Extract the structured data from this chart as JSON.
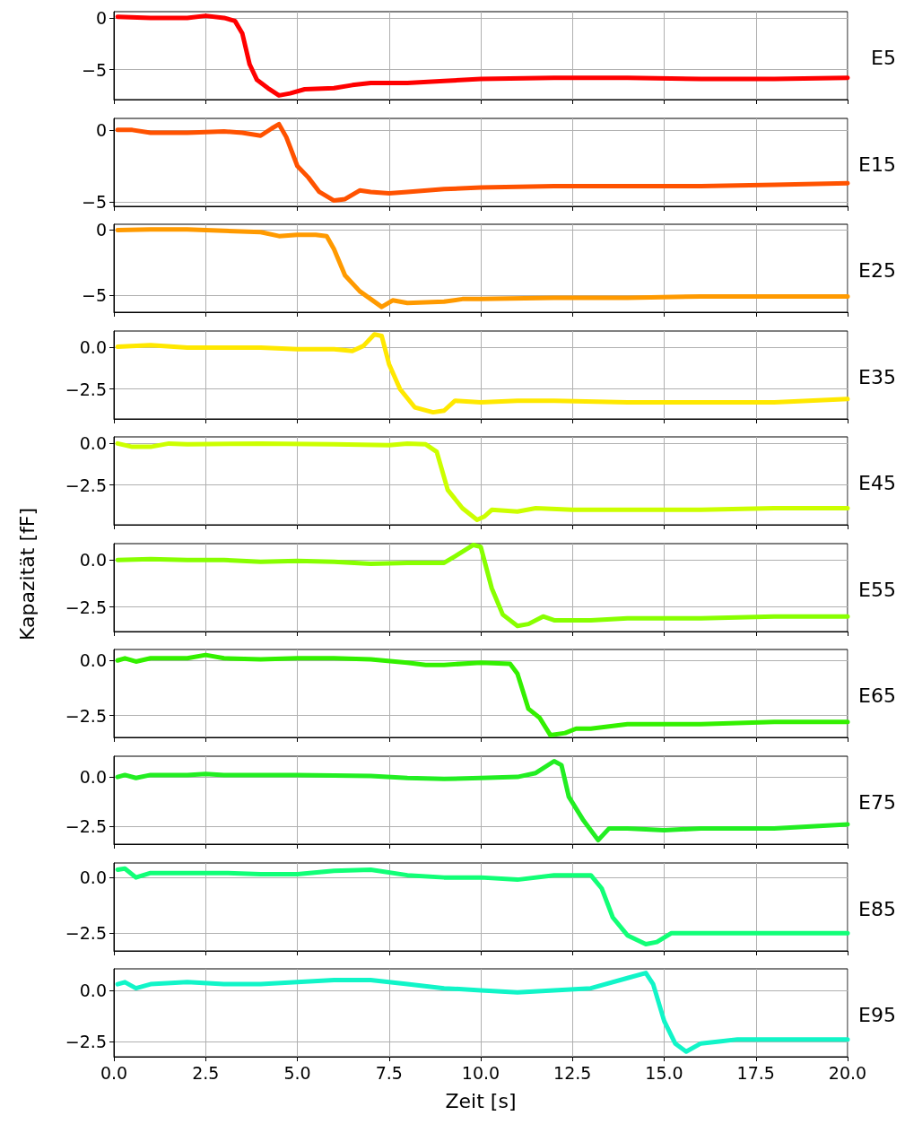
{
  "chart_data": [
    {
      "type": "line",
      "x": [
        0.1,
        1,
        2,
        2.5,
        3,
        3.3,
        3.5,
        3.7,
        3.9,
        4.2,
        4.5,
        4.8,
        5.2,
        6,
        6.5,
        7,
        8,
        9,
        10,
        12,
        14,
        16,
        18,
        20
      ],
      "series": [
        {
          "name": "E5",
          "color": "#ff0000",
          "values": [
            0.1,
            0.0,
            0.0,
            0.2,
            0.0,
            -0.3,
            -1.5,
            -4.5,
            -6.0,
            -6.8,
            -7.5,
            -7.3,
            -6.9,
            -6.8,
            -6.5,
            -6.3,
            -6.3,
            -6.1,
            -5.9,
            -5.8,
            -5.8,
            -5.9,
            -5.9,
            -5.8
          ]
        }
      ],
      "xlim": [
        0,
        20
      ],
      "xticks": [
        0,
        2.5,
        5,
        7.5,
        10,
        12.5,
        15,
        17.5,
        20
      ],
      "ylim": [
        -7.9,
        0.6
      ],
      "yticks": [
        {
          "value": 0,
          "label": "0"
        },
        {
          "value": -5,
          "label": "−5"
        }
      ],
      "grid": true,
      "legend": "right",
      "marker": "none",
      "tick_labels": "y"
    },
    {
      "type": "line",
      "x": [
        0.1,
        0.5,
        1,
        2,
        3,
        3.5,
        4,
        4.3,
        4.5,
        4.7,
        5,
        5.3,
        5.6,
        6,
        6.3,
        6.7,
        7,
        7.5,
        8,
        9,
        10,
        12,
        14,
        16,
        18,
        20
      ],
      "series": [
        {
          "name": "E15",
          "color": "#ff5200",
          "values": [
            0.0,
            0.0,
            -0.2,
            -0.2,
            -0.1,
            -0.2,
            -0.4,
            0.1,
            0.4,
            -0.5,
            -2.5,
            -3.3,
            -4.3,
            -4.9,
            -4.8,
            -4.2,
            -4.3,
            -4.4,
            -4.3,
            -4.1,
            -4.0,
            -3.9,
            -3.9,
            -3.9,
            -3.8,
            -3.7
          ]
        }
      ],
      "xlim": [
        0,
        20
      ],
      "xticks": [
        0,
        2.5,
        5,
        7.5,
        10,
        12.5,
        15,
        17.5,
        20
      ],
      "ylim": [
        -5.3,
        0.8
      ],
      "yticks": [
        {
          "value": 0,
          "label": "0"
        },
        {
          "value": -5,
          "label": "−5"
        }
      ],
      "grid": true,
      "legend": "right",
      "marker": "none",
      "tick_labels": "y"
    },
    {
      "type": "line",
      "x": [
        0.1,
        1,
        2,
        3,
        4,
        4.5,
        5,
        5.5,
        5.8,
        6,
        6.3,
        6.7,
        7,
        7.3,
        7.6,
        8,
        9,
        9.5,
        10,
        12,
        14,
        16,
        18,
        20
      ],
      "series": [
        {
          "name": "E25",
          "color": "#ff9a00",
          "values": [
            -0.05,
            0.0,
            0.0,
            -0.1,
            -0.2,
            -0.5,
            -0.4,
            -0.4,
            -0.5,
            -1.5,
            -3.5,
            -4.7,
            -5.3,
            -5.9,
            -5.4,
            -5.6,
            -5.5,
            -5.3,
            -5.3,
            -5.2,
            -5.2,
            -5.1,
            -5.1,
            -5.1
          ]
        }
      ],
      "xlim": [
        0,
        20
      ],
      "xticks": [
        0,
        2.5,
        5,
        7.5,
        10,
        12.5,
        15,
        17.5,
        20
      ],
      "ylim": [
        -6.3,
        0.4
      ],
      "yticks": [
        {
          "value": 0,
          "label": "0"
        },
        {
          "value": -5,
          "label": "−5"
        }
      ],
      "grid": true,
      "legend": "right",
      "marker": "none",
      "tick_labels": "y"
    },
    {
      "type": "line",
      "x": [
        0.1,
        1,
        2,
        3,
        4,
        5,
        6,
        6.5,
        6.8,
        7.1,
        7.3,
        7.5,
        7.8,
        8.2,
        8.7,
        9.0,
        9.3,
        10,
        11,
        12,
        14,
        16,
        18,
        20
      ],
      "series": [
        {
          "name": "E35",
          "color": "#ffe800",
          "values": [
            0.05,
            0.15,
            0.0,
            0.0,
            0.0,
            -0.1,
            -0.1,
            -0.2,
            0.1,
            0.8,
            0.7,
            -1.0,
            -2.5,
            -3.6,
            -3.9,
            -3.8,
            -3.2,
            -3.3,
            -3.2,
            -3.2,
            -3.3,
            -3.3,
            -3.3,
            -3.1
          ]
        }
      ],
      "xlim": [
        0,
        20
      ],
      "xticks": [
        0,
        2.5,
        5,
        7.5,
        10,
        12.5,
        15,
        17.5,
        20
      ],
      "ylim": [
        -4.3,
        1.0
      ],
      "yticks": [
        {
          "value": 0,
          "label": "0.0"
        },
        {
          "value": -2.5,
          "label": "−2.5"
        }
      ],
      "grid": true,
      "legend": "right",
      "marker": "none",
      "tick_labels": "y"
    },
    {
      "type": "line",
      "x": [
        0.1,
        0.5,
        1,
        1.5,
        2,
        4,
        6,
        7.5,
        8,
        8.5,
        8.8,
        9.1,
        9.5,
        9.9,
        10.1,
        10.3,
        11,
        11.5,
        12.5,
        14,
        16,
        18,
        20
      ],
      "series": [
        {
          "name": "E45",
          "color": "#ccff00",
          "values": [
            0.0,
            -0.2,
            -0.2,
            0.0,
            -0.05,
            0.0,
            -0.05,
            -0.1,
            0.0,
            -0.05,
            -0.5,
            -2.8,
            -3.9,
            -4.6,
            -4.4,
            -4.0,
            -4.1,
            -3.9,
            -4.0,
            -4.0,
            -4.0,
            -3.9,
            -3.9
          ]
        }
      ],
      "xlim": [
        0,
        20
      ],
      "xticks": [
        0,
        2.5,
        5,
        7.5,
        10,
        12.5,
        15,
        17.5,
        20
      ],
      "ylim": [
        -4.9,
        0.4
      ],
      "yticks": [
        {
          "value": 0,
          "label": "0.0"
        },
        {
          "value": -2.5,
          "label": "−2.5"
        }
      ],
      "grid": true,
      "legend": "right",
      "marker": "none",
      "tick_labels": "y"
    },
    {
      "type": "line",
      "x": [
        0.1,
        1,
        2,
        3,
        4,
        5,
        6,
        7,
        8,
        9,
        9.3,
        9.8,
        10,
        10.3,
        10.6,
        11,
        11.3,
        11.7,
        12,
        13,
        14,
        16,
        18,
        20
      ],
      "ylabel": "Kapazität [fF]",
      "series": [
        {
          "name": "E55",
          "color": "#88ff00",
          "values": [
            0.0,
            0.05,
            0.0,
            0.0,
            -0.1,
            -0.05,
            -0.1,
            -0.2,
            -0.15,
            -0.15,
            0.2,
            0.8,
            0.7,
            -1.5,
            -2.9,
            -3.5,
            -3.4,
            -3.0,
            -3.2,
            -3.2,
            -3.1,
            -3.1,
            -3.0,
            -3.0
          ]
        }
      ],
      "xlim": [
        0,
        20
      ],
      "xticks": [
        0,
        2.5,
        5,
        7.5,
        10,
        12.5,
        15,
        17.5,
        20
      ],
      "ylim": [
        -3.8,
        0.87
      ],
      "yticks": [
        {
          "value": 0,
          "label": "0.0"
        },
        {
          "value": -2.5,
          "label": "−2.5"
        }
      ],
      "grid": true,
      "legend": "right",
      "marker": "none",
      "tick_labels": "y"
    },
    {
      "type": "line",
      "x": [
        0.1,
        0.3,
        0.6,
        1,
        2,
        2.5,
        3,
        4,
        5,
        6,
        7,
        8,
        8.5,
        9,
        10,
        10.8,
        11.0,
        11.3,
        11.6,
        11.9,
        12.3,
        12.6,
        13,
        14,
        16,
        18,
        20
      ],
      "series": [
        {
          "name": "E65",
          "color": "#33f000",
          "values": [
            0.0,
            0.1,
            -0.05,
            0.1,
            0.1,
            0.25,
            0.1,
            0.05,
            0.1,
            0.1,
            0.05,
            -0.1,
            -0.2,
            -0.2,
            -0.1,
            -0.15,
            -0.6,
            -2.2,
            -2.6,
            -3.4,
            -3.3,
            -3.1,
            -3.1,
            -2.9,
            -2.9,
            -2.8,
            -2.8
          ]
        }
      ],
      "xlim": [
        0,
        20
      ],
      "xticks": [
        0,
        2.5,
        5,
        7.5,
        10,
        12.5,
        15,
        17.5,
        20
      ],
      "ylim": [
        -3.5,
        0.5
      ],
      "yticks": [
        {
          "value": 0,
          "label": "0.0"
        },
        {
          "value": -2.5,
          "label": "−2.5"
        }
      ],
      "grid": true,
      "legend": "right",
      "marker": "none",
      "tick_labels": "y"
    },
    {
      "type": "line",
      "x": [
        0.1,
        0.3,
        0.6,
        1,
        2,
        2.5,
        3,
        5,
        7,
        8,
        9,
        10,
        11,
        11.5,
        12,
        12.2,
        12.4,
        12.8,
        13.2,
        13.5,
        14,
        15,
        16,
        18,
        20
      ],
      "series": [
        {
          "name": "E75",
          "color": "#22ee22",
          "values": [
            0.0,
            0.1,
            -0.05,
            0.1,
            0.1,
            0.15,
            0.1,
            0.1,
            0.05,
            -0.05,
            -0.1,
            -0.05,
            0.0,
            0.2,
            0.8,
            0.6,
            -1.0,
            -2.2,
            -3.2,
            -2.6,
            -2.6,
            -2.7,
            -2.6,
            -2.6,
            -2.4
          ]
        }
      ],
      "xlim": [
        0,
        20
      ],
      "xticks": [
        0,
        2.5,
        5,
        7.5,
        10,
        12.5,
        15,
        17.5,
        20
      ],
      "ylim": [
        -3.4,
        1.05
      ],
      "yticks": [
        {
          "value": 0,
          "label": "0.0"
        },
        {
          "value": -2.5,
          "label": "−2.5"
        }
      ],
      "grid": true,
      "legend": "right",
      "marker": "none",
      "tick_labels": "y"
    },
    {
      "type": "line",
      "x": [
        0.1,
        0.3,
        0.6,
        1,
        2,
        3,
        4,
        5,
        6,
        7,
        8,
        9,
        10,
        11,
        12,
        13,
        13.3,
        13.6,
        14,
        14.5,
        14.8,
        15.2,
        16,
        17,
        18,
        20
      ],
      "series": [
        {
          "name": "E85",
          "color": "#11ff77",
          "values": [
            0.35,
            0.4,
            0.0,
            0.2,
            0.2,
            0.2,
            0.15,
            0.15,
            0.3,
            0.35,
            0.1,
            0.0,
            0.0,
            -0.1,
            0.1,
            0.1,
            -0.5,
            -1.8,
            -2.6,
            -3.0,
            -2.9,
            -2.5,
            -2.5,
            -2.5,
            -2.5,
            -2.5
          ]
        }
      ],
      "xlim": [
        0,
        20
      ],
      "xticks": [
        0,
        2.5,
        5,
        7.5,
        10,
        12.5,
        15,
        17.5,
        20
      ],
      "ylim": [
        -3.3,
        0.65
      ],
      "yticks": [
        {
          "value": 0,
          "label": "0.0"
        },
        {
          "value": -2.5,
          "label": "−2.5"
        }
      ],
      "grid": true,
      "legend": "right",
      "marker": "none",
      "tick_labels": "y"
    },
    {
      "type": "line",
      "x": [
        0.1,
        0.3,
        0.6,
        1,
        2,
        3,
        4,
        5,
        6,
        7,
        8,
        9,
        10,
        11,
        12,
        13,
        14,
        14.5,
        14.7,
        15,
        15.3,
        15.6,
        16,
        16.5,
        17,
        18,
        20
      ],
      "xlabel": "Zeit [s]",
      "series": [
        {
          "name": "E95",
          "color": "#11f5c8",
          "values": [
            0.3,
            0.4,
            0.1,
            0.3,
            0.4,
            0.3,
            0.3,
            0.4,
            0.5,
            0.5,
            0.3,
            0.1,
            0.0,
            -0.1,
            0.0,
            0.1,
            0.6,
            0.85,
            0.3,
            -1.5,
            -2.6,
            -3.0,
            -2.6,
            -2.5,
            -2.4,
            -2.4,
            -2.4
          ]
        }
      ],
      "xlim": [
        0,
        20
      ],
      "xticks": [
        {
          "value": 0,
          "label": "0.0"
        },
        {
          "value": 2.5,
          "label": "2.5"
        },
        {
          "value": 5,
          "label": "5.0"
        },
        {
          "value": 7.5,
          "label": "7.5"
        },
        {
          "value": 10,
          "label": "10.0"
        },
        {
          "value": 12.5,
          "label": "12.5"
        },
        {
          "value": 15,
          "label": "15.0"
        },
        {
          "value": 17.5,
          "label": "17.5"
        },
        {
          "value": 20,
          "label": "20.0"
        }
      ],
      "ylim": [
        -3.25,
        1.05
      ],
      "yticks": [
        {
          "value": 0,
          "label": "0.0"
        },
        {
          "value": -2.5,
          "label": "−2.5"
        }
      ],
      "grid": true,
      "legend": "right",
      "marker": "none"
    }
  ]
}
